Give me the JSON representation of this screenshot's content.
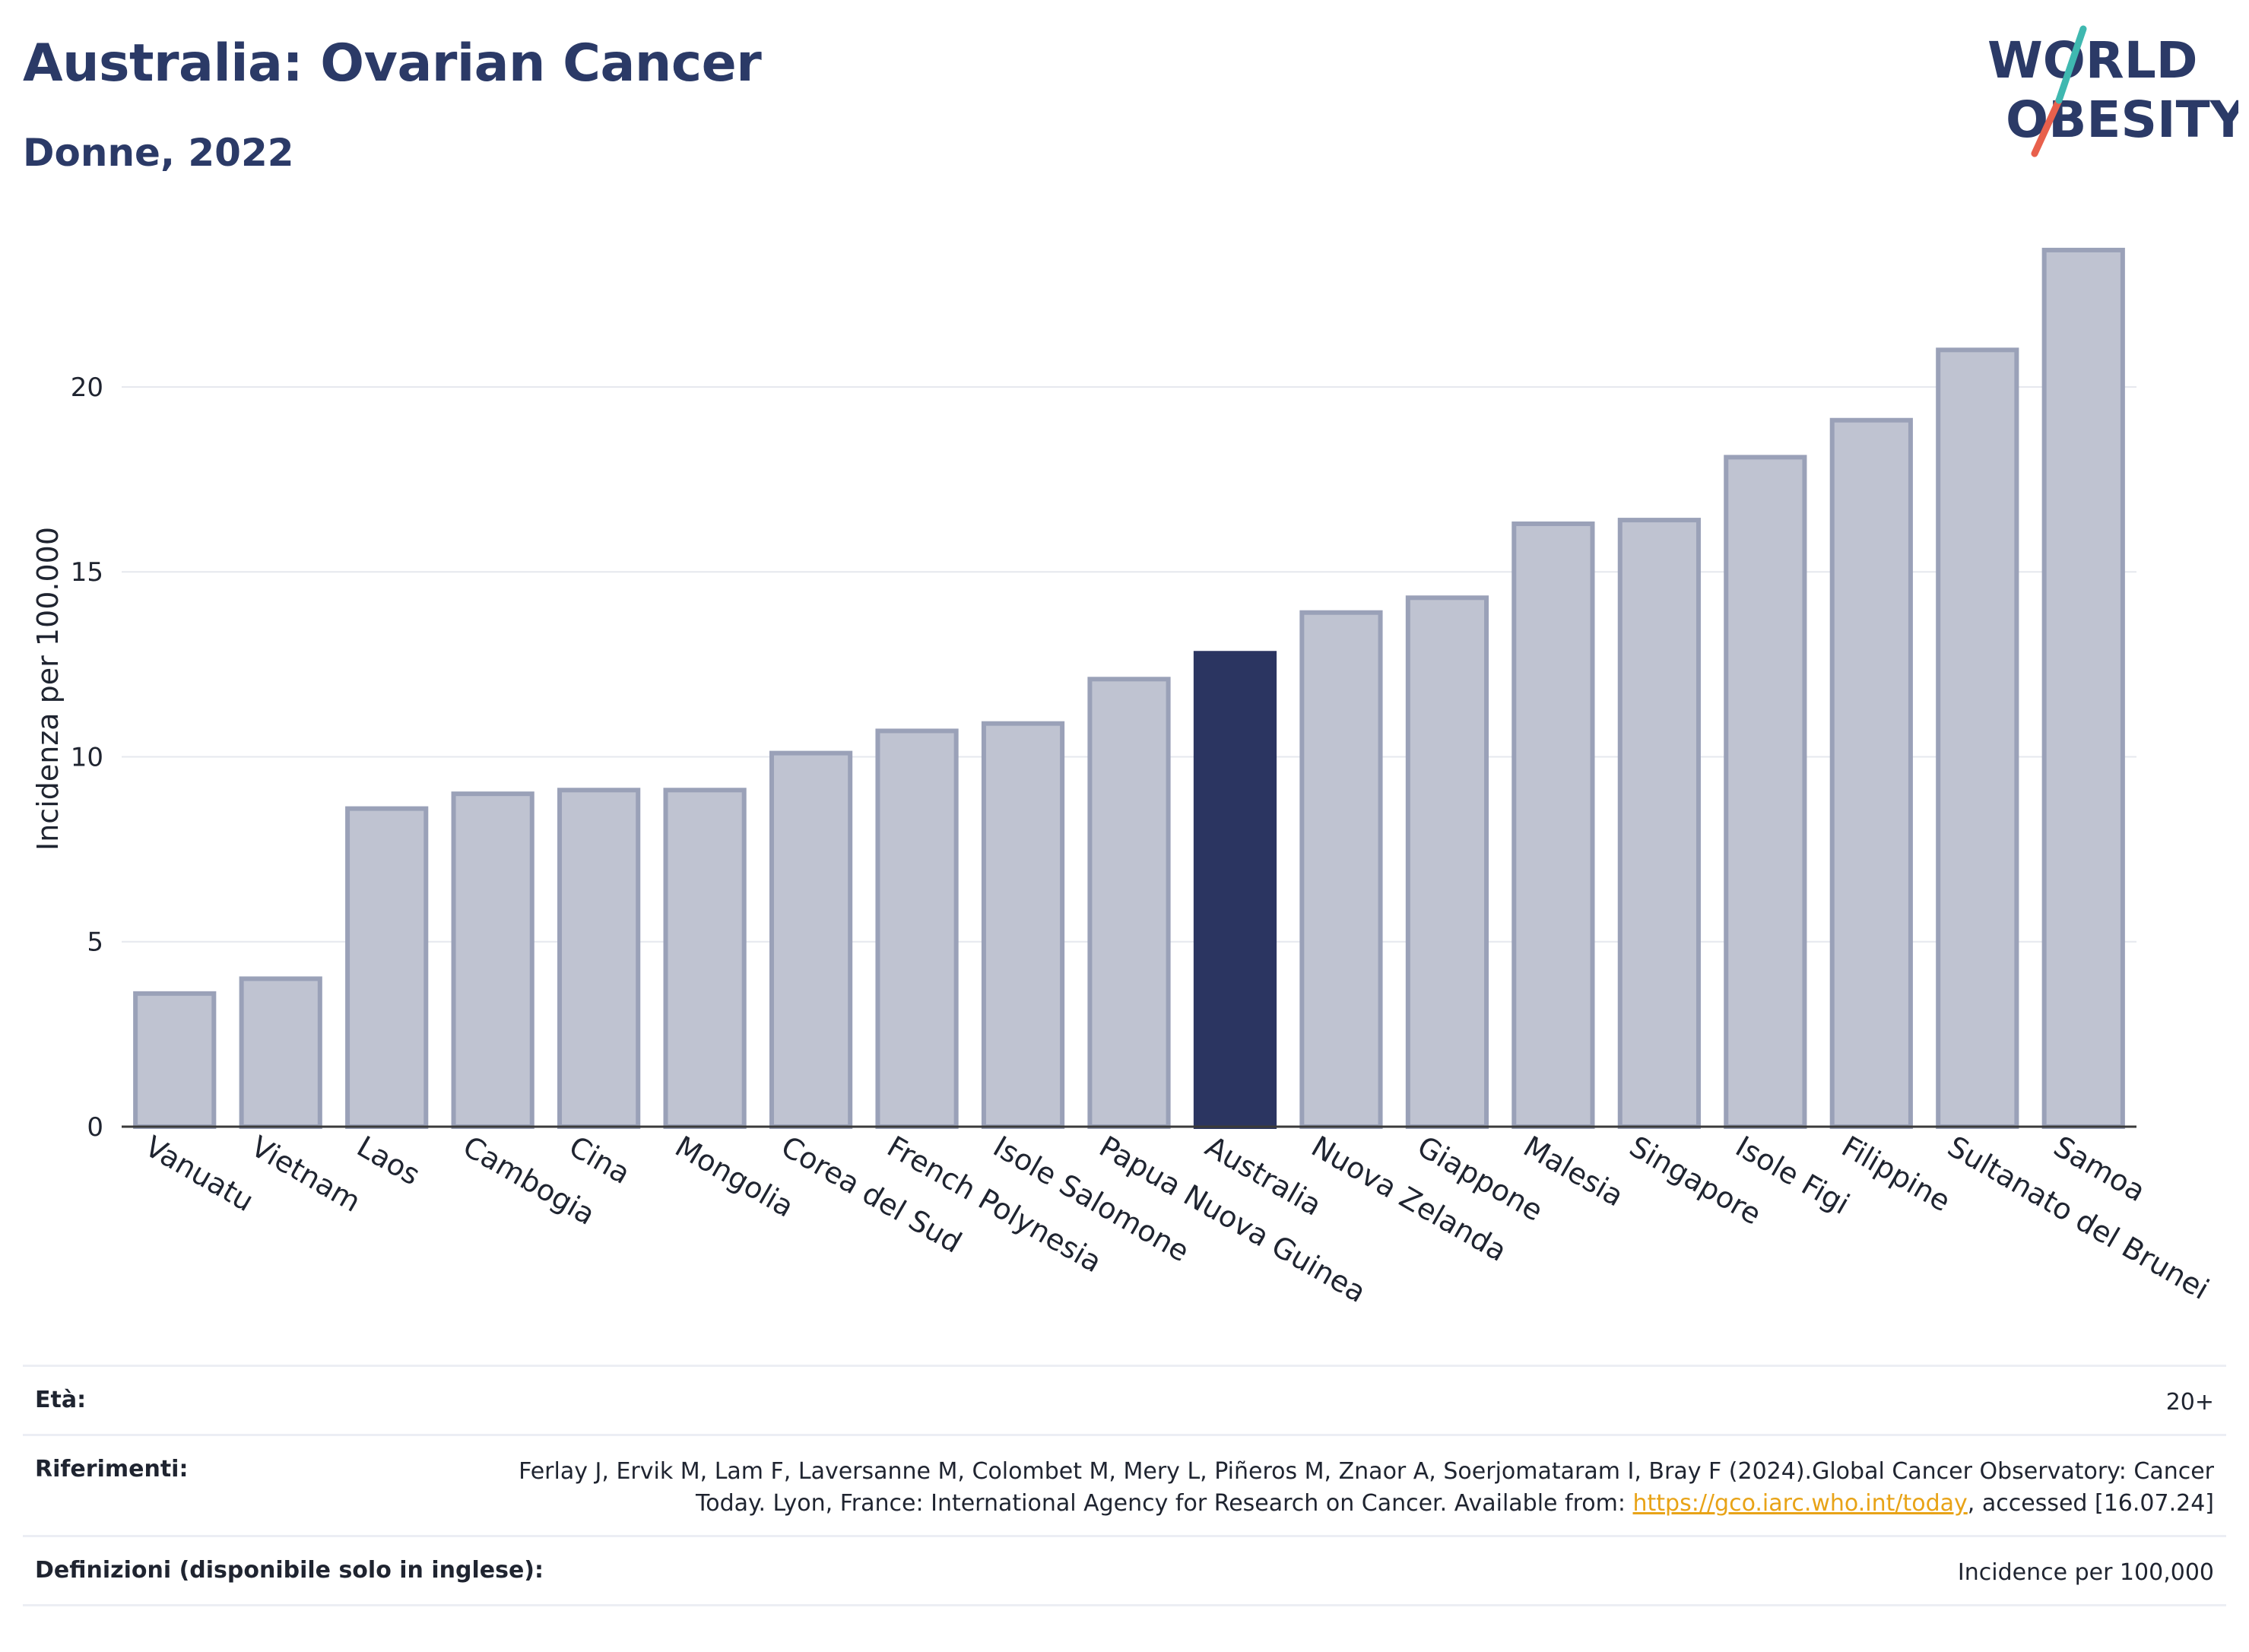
{
  "header": {
    "title": "Australia: Ovarian Cancer",
    "subtitle": "Donne, 2022"
  },
  "logo": {
    "line1": "WORLD",
    "line2": "OBESITY",
    "accent_teal": "#3fb8b0",
    "accent_red": "#e8604c",
    "text_color": "#2b3a67"
  },
  "colors": {
    "bar": "#bfc3d1",
    "bar_border": "#9aa1b8",
    "highlight": "#2b3561"
  },
  "chart_data": {
    "type": "bar",
    "ylabel": "Incidenza per 100.000",
    "xlabel": "",
    "ylim": [
      0,
      24.5
    ],
    "yticks": [
      0,
      5,
      10,
      15,
      20
    ],
    "grid": true,
    "highlight": "Australia",
    "categories": [
      "Vanuatu",
      "Vietnam",
      "Laos",
      "Cambogia",
      "Cina",
      "Mongolia",
      "Corea del Sud",
      "French Polynesia",
      "Isole Salomone",
      "Papua Nuova Guinea",
      "Australia",
      "Nuova Zelanda",
      "Giappone",
      "Malesia",
      "Singapore",
      "Isole Figi",
      "Filippine",
      "Sultanato del Brunei",
      "Samoa"
    ],
    "values": [
      3.6,
      4.0,
      8.6,
      9.0,
      9.1,
      9.1,
      10.1,
      10.7,
      10.9,
      12.1,
      12.8,
      13.9,
      14.3,
      16.3,
      16.4,
      18.1,
      19.1,
      21.0,
      23.7
    ]
  },
  "info": {
    "age_label": "Età:",
    "age_value": "20+",
    "refs_label": "Riferimenti:",
    "refs_text_1": "Ferlay J, Ervik M, Lam F, Laversanne M, Colombet M, Mery L, Piñeros M, Znaor A, Soerjomataram I, Bray F (2024).Global Cancer Observatory: Cancer Today. Lyon, France: International Agency for Research on Cancer. Available from: ",
    "refs_link": "https://gco.iarc.who.int/today",
    "refs_text_2": ", accessed [16.07.24]",
    "def_label": "Definizioni (disponibile solo in inglese):",
    "def_value": "Incidence per 100,000"
  }
}
